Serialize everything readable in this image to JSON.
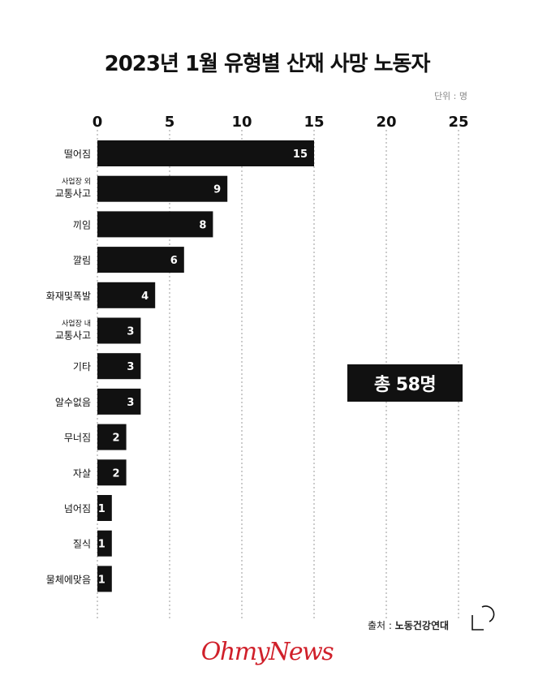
{
  "header": {
    "title": "2023년 1월 유형별 산재 사망 노동자",
    "unit": "단위 : 명"
  },
  "chart_data": {
    "type": "bar",
    "orientation": "horizontal",
    "title": "2023년 1월 유형별 산재 사망 노동자",
    "unit": "단위 : 명",
    "xlim": [
      0,
      25
    ],
    "xticks": [
      0,
      5,
      10,
      15,
      20,
      25
    ],
    "grid": "vertical dotted",
    "categories": [
      {
        "top": "",
        "main": "떨어짐"
      },
      {
        "top": "사업장 외",
        "main": "교통사고"
      },
      {
        "top": "",
        "main": "끼임"
      },
      {
        "top": "",
        "main": "깔림"
      },
      {
        "top": "",
        "main": "화재및폭발"
      },
      {
        "top": "사업장 내",
        "main": "교통사고"
      },
      {
        "top": "",
        "main": "기타"
      },
      {
        "top": "",
        "main": "알수없음"
      },
      {
        "top": "",
        "main": "무너짐"
      },
      {
        "top": "",
        "main": "자살"
      },
      {
        "top": "",
        "main": "넘어짐"
      },
      {
        "top": "",
        "main": "질식"
      },
      {
        "top": "",
        "main": "물체에맞음"
      }
    ],
    "values": [
      15,
      9,
      8,
      6,
      4,
      3,
      3,
      3,
      2,
      2,
      1,
      1,
      1
    ],
    "colors": {
      "bar": "#111111",
      "label": "#ffffff",
      "grid": "#9a9a9a"
    }
  },
  "total": {
    "label": "총 58명"
  },
  "source": {
    "label": "출처 :",
    "org": "노동건강연대"
  },
  "brand": {
    "logo": "OhmyNews",
    "logo_color": "#d0202a"
  }
}
